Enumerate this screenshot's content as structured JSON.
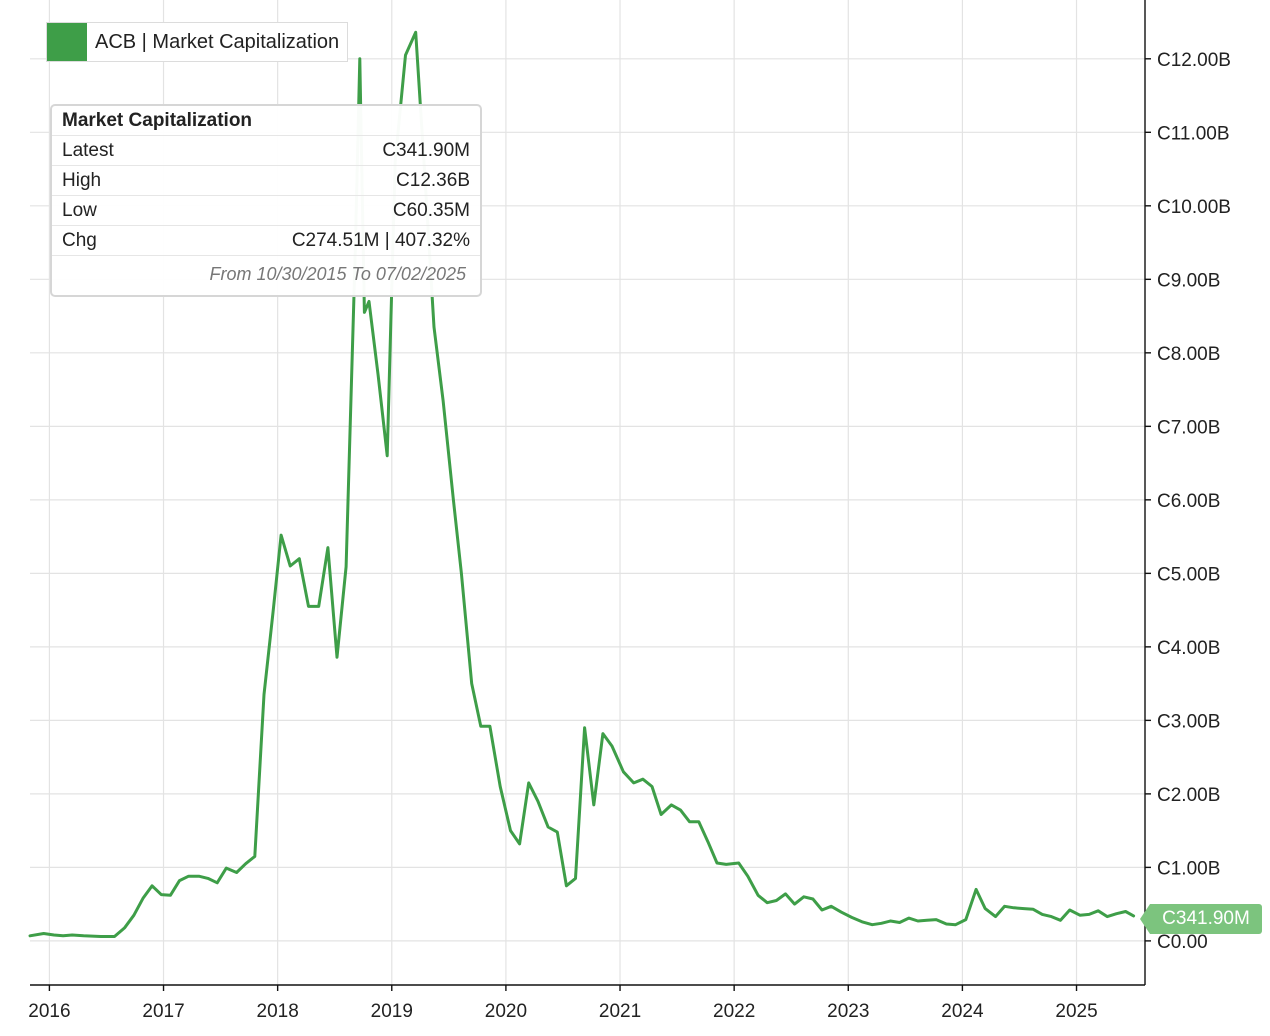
{
  "colors": {
    "series": "#3e9e48",
    "badge": "#7cc47e",
    "grid": "#e3e3e3"
  },
  "legend": {
    "label": "ACB | Market Capitalization"
  },
  "info_box": {
    "title": "Market Capitalization",
    "rows": [
      {
        "label": "Latest",
        "value": "C341.90M"
      },
      {
        "label": "High",
        "value": "C12.36B"
      },
      {
        "label": "Low",
        "value": "C60.35M"
      },
      {
        "label": "Chg",
        "value": "C274.51M | 407.32%"
      }
    ],
    "range_note": "From 10/30/2015 To 07/02/2025"
  },
  "last_value_label": "C341.90M",
  "chart_data": {
    "type": "line",
    "title": "",
    "xlabel": "",
    "ylabel": "",
    "x_range": [
      2015.83,
      2025.6
    ],
    "ylim": [
      -0.6,
      12.8
    ],
    "grid": true,
    "y_axis_position": "right",
    "legend_placement": "top-left",
    "x_ticks": [
      {
        "value": 2016,
        "label": "2016"
      },
      {
        "value": 2017,
        "label": "2017"
      },
      {
        "value": 2018,
        "label": "2018"
      },
      {
        "value": 2019,
        "label": "2019"
      },
      {
        "value": 2020,
        "label": "2020"
      },
      {
        "value": 2021,
        "label": "2021"
      },
      {
        "value": 2022,
        "label": "2022"
      },
      {
        "value": 2023,
        "label": "2023"
      },
      {
        "value": 2024,
        "label": "2024"
      },
      {
        "value": 2025,
        "label": "2025"
      }
    ],
    "y_ticks": [
      {
        "value": 0,
        "label": "C0.00"
      },
      {
        "value": 1,
        "label": "C1.00B"
      },
      {
        "value": 2,
        "label": "C2.00B"
      },
      {
        "value": 3,
        "label": "C3.00B"
      },
      {
        "value": 4,
        "label": "C4.00B"
      },
      {
        "value": 5,
        "label": "C5.00B"
      },
      {
        "value": 6,
        "label": "C6.00B"
      },
      {
        "value": 7,
        "label": "C7.00B"
      },
      {
        "value": 8,
        "label": "C8.00B"
      },
      {
        "value": 9,
        "label": "C9.00B"
      },
      {
        "value": 10,
        "label": "C10.00B"
      },
      {
        "value": 11,
        "label": "C11.00B"
      },
      {
        "value": 12,
        "label": "C12.00B"
      }
    ],
    "series": [
      {
        "name": "ACB | Market Capitalization",
        "x": [
          2015.83,
          2015.95,
          2016.04,
          2016.12,
          2016.2,
          2016.3,
          2016.45,
          2016.57,
          2016.66,
          2016.74,
          2016.82,
          2016.9,
          2016.98,
          2017.06,
          2017.14,
          2017.22,
          2017.31,
          2017.39,
          2017.47,
          2017.55,
          2017.64,
          2017.72,
          2017.8,
          2017.88,
          2017.96,
          2018.03,
          2018.11,
          2018.19,
          2018.27,
          2018.36,
          2018.44,
          2018.52,
          2018.6,
          2018.68,
          2018.72,
          2018.76,
          2018.8,
          2018.88,
          2018.96,
          2019.03,
          2019.12,
          2019.21,
          2019.29,
          2019.37,
          2019.45,
          2019.54,
          2019.61,
          2019.7,
          2019.78,
          2019.86,
          2019.95,
          2020.04,
          2020.12,
          2020.2,
          2020.28,
          2020.37,
          2020.45,
          2020.53,
          2020.61,
          2020.69,
          2020.77,
          2020.85,
          2020.93,
          2021.03,
          2021.12,
          2021.2,
          2021.28,
          2021.36,
          2021.45,
          2021.53,
          2021.61,
          2021.69,
          2021.77,
          2021.85,
          2021.93,
          2022.04,
          2022.12,
          2022.21,
          2022.29,
          2022.37,
          2022.45,
          2022.53,
          2022.61,
          2022.69,
          2022.77,
          2022.85,
          2022.94,
          2023.03,
          2023.12,
          2023.21,
          2023.29,
          2023.37,
          2023.45,
          2023.53,
          2023.61,
          2023.69,
          2023.77,
          2023.86,
          2023.94,
          2024.03,
          2024.12,
          2024.2,
          2024.29,
          2024.37,
          2024.45,
          2024.54,
          2024.62,
          2024.7,
          2024.78,
          2024.86,
          2024.94,
          2025.03,
          2025.11,
          2025.19,
          2025.27,
          2025.35,
          2025.43,
          2025.5
        ],
        "y": [
          0.07,
          0.1,
          0.08,
          0.07,
          0.08,
          0.07,
          0.06,
          0.06,
          0.18,
          0.35,
          0.58,
          0.75,
          0.63,
          0.62,
          0.82,
          0.88,
          0.88,
          0.85,
          0.79,
          0.99,
          0.93,
          1.05,
          1.15,
          3.35,
          4.48,
          5.52,
          5.1,
          5.2,
          4.55,
          4.55,
          5.35,
          3.86,
          5.09,
          9.4,
          12.0,
          8.55,
          8.7,
          7.7,
          6.6,
          10.6,
          12.05,
          12.36,
          10.4,
          8.35,
          7.35,
          6.0,
          5.0,
          3.5,
          2.92,
          2.92,
          2.1,
          1.5,
          1.32,
          2.15,
          1.9,
          1.55,
          1.48,
          0.75,
          0.85,
          2.9,
          1.85,
          2.82,
          2.65,
          2.3,
          2.15,
          2.2,
          2.1,
          1.72,
          1.85,
          1.78,
          1.62,
          1.62,
          1.35,
          1.06,
          1.04,
          1.06,
          0.88,
          0.62,
          0.52,
          0.55,
          0.64,
          0.5,
          0.6,
          0.57,
          0.42,
          0.47,
          0.39,
          0.32,
          0.26,
          0.22,
          0.24,
          0.27,
          0.25,
          0.31,
          0.27,
          0.28,
          0.29,
          0.23,
          0.22,
          0.29,
          0.7,
          0.44,
          0.33,
          0.47,
          0.45,
          0.44,
          0.43,
          0.36,
          0.33,
          0.28,
          0.42,
          0.35,
          0.36,
          0.41,
          0.33,
          0.37,
          0.4,
          0.34
        ]
      }
    ]
  }
}
